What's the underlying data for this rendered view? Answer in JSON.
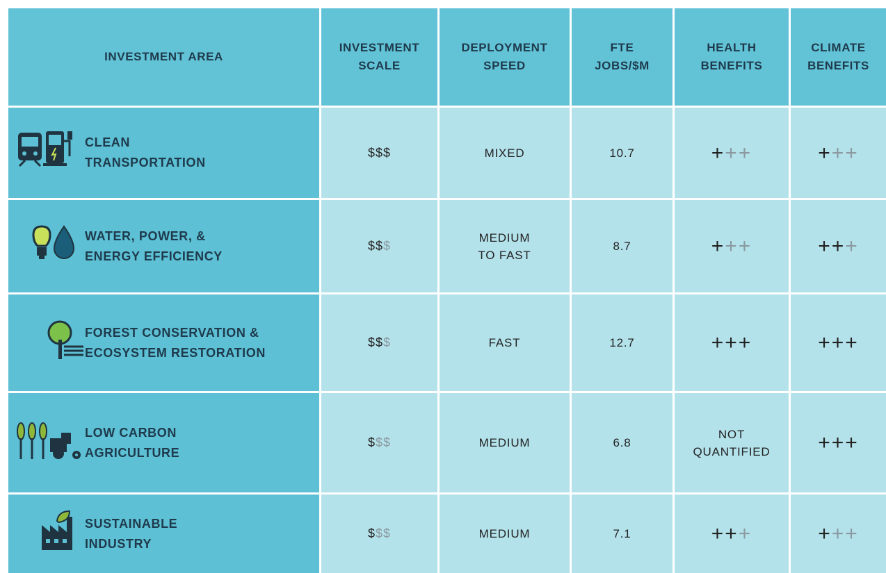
{
  "table": {
    "header": [
      [
        "INVESTMENT AREA"
      ],
      [
        "INVESTMENT",
        "SCALE"
      ],
      [
        "DEPLOYMENT",
        "SPEED"
      ],
      [
        "FTE",
        "JOBS/$M"
      ],
      [
        "HEALTH",
        "BENEFITS"
      ],
      [
        "CLIMATE",
        "BENEFITS"
      ]
    ],
    "rows": [
      {
        "area": [
          "CLEAN",
          "TRANSPORTATION"
        ],
        "scale": {
          "filled": "$$$"
        },
        "speed": [
          "MIXED"
        ],
        "jobs": "10.7",
        "health": {
          "filled": "+",
          "empty": "++"
        },
        "climate": {
          "filled": "+",
          "empty": "++"
        }
      },
      {
        "area": [
          "WATER, POWER, &",
          "ENERGY EFFICIENCY"
        ],
        "scale": {
          "filled": "$$",
          "empty": "$"
        },
        "speed": [
          "MEDIUM",
          "TO FAST"
        ],
        "jobs": "8.7",
        "health": {
          "filled": "+",
          "empty": "++"
        },
        "climate": {
          "filled": "++",
          "empty": "+"
        }
      },
      {
        "area": [
          "FOREST CONSERVATION &",
          "ECOSYSTEM RESTORATION"
        ],
        "scale": {
          "filled": "$$",
          "empty": "$"
        },
        "speed": [
          "FAST"
        ],
        "jobs": "12.7",
        "health": {
          "filled": "+++"
        },
        "climate": {
          "filled": "+++"
        }
      },
      {
        "area": [
          "LOW CARBON",
          "AGRICULTURE"
        ],
        "scale": {
          "filled": "$",
          "empty": "$$"
        },
        "speed": [
          "MEDIUM"
        ],
        "jobs": "6.8",
        "health": [
          "NOT",
          "QUANTIFIED"
        ],
        "climate": {
          "filled": "+++"
        }
      },
      {
        "area": [
          "SUSTAINABLE",
          "INDUSTRY"
        ],
        "scale": {
          "filled": "$",
          "empty": "$$"
        },
        "speed": [
          "MEDIUM"
        ],
        "jobs": "7.1",
        "health": {
          "filled": "++",
          "empty": "+"
        },
        "climate": {
          "filled": "+",
          "empty": "++"
        }
      }
    ]
  }
}
